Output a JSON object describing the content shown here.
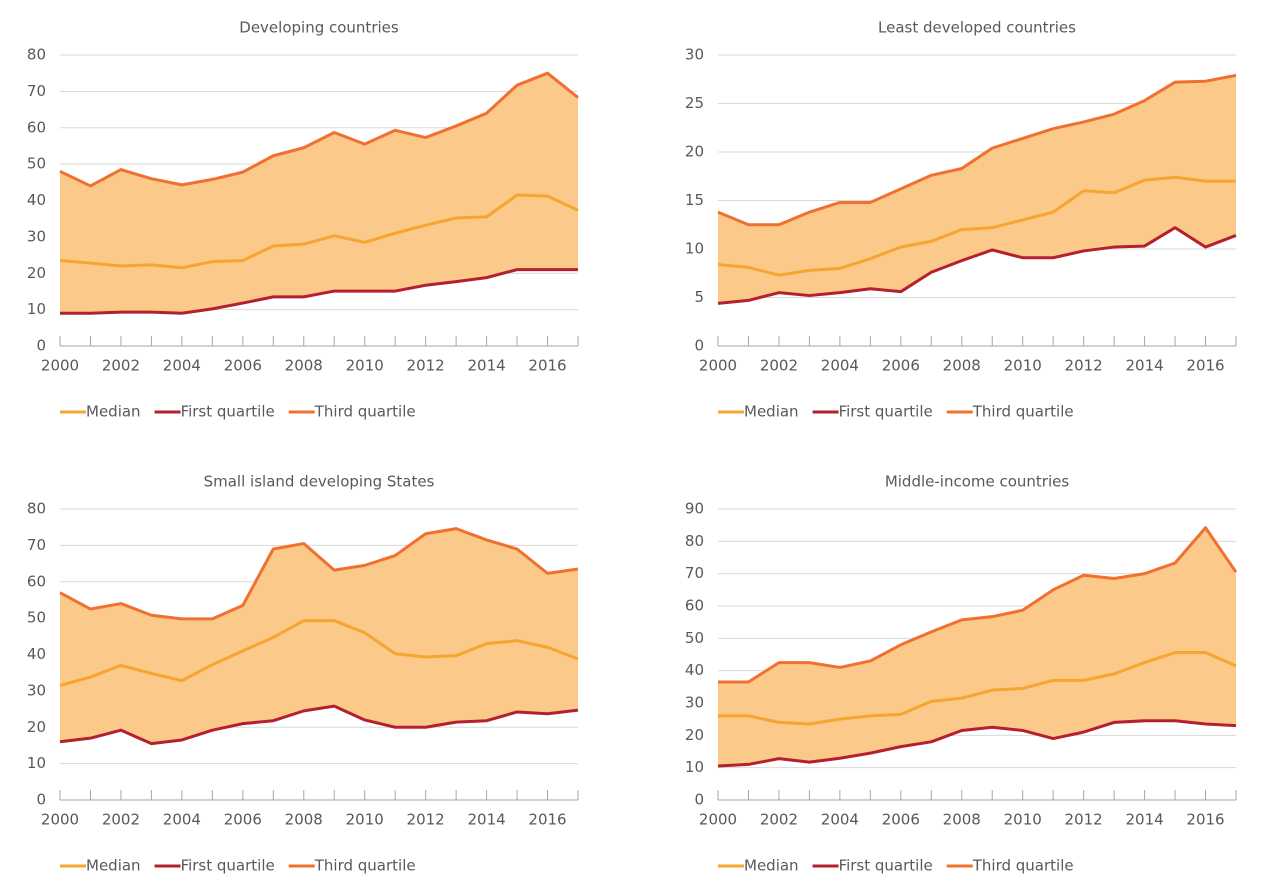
{
  "chart_data": [
    {
      "type": "line",
      "title": "Developing countries",
      "x": [
        2000,
        2001,
        2002,
        2003,
        2004,
        2005,
        2006,
        2007,
        2008,
        2009,
        2010,
        2011,
        2012,
        2013,
        2014,
        2015,
        2016,
        2017
      ],
      "series": [
        {
          "name": "Median",
          "color": "#f6a530",
          "values": [
            23.5,
            22.8,
            22,
            22.3,
            21.5,
            23.2,
            23.5,
            27.5,
            28,
            30.3,
            28.5,
            31,
            33.2,
            35.2,
            35.5,
            41.5,
            41.2,
            37.3
          ]
        },
        {
          "name": "First quartile",
          "color": "#b5202e",
          "values": [
            9,
            9,
            9.3,
            9.3,
            9,
            10.2,
            11.8,
            13.5,
            13.5,
            15.1,
            15.1,
            15.1,
            16.7,
            17.7,
            18.8,
            21,
            21,
            21
          ]
        },
        {
          "name": "Third quartile",
          "color": "#f07030",
          "values": [
            48,
            44,
            48.5,
            46,
            44.3,
            45.8,
            47.8,
            52.3,
            54.5,
            58.7,
            55.5,
            59.3,
            57.3,
            60.5,
            64,
            71.7,
            75,
            68.3
          ]
        }
      ],
      "xlim": [
        2000,
        2017
      ],
      "xticks": [
        2000,
        2002,
        2004,
        2006,
        2008,
        2010,
        2012,
        2014,
        2016
      ],
      "ylim": [
        0,
        80
      ],
      "yticks": [
        0,
        10,
        20,
        30,
        40,
        50,
        60,
        70,
        80
      ],
      "grid": true,
      "band_color": "#fbc98a"
    },
    {
      "type": "line",
      "title": "Least developed countries",
      "x": [
        2000,
        2001,
        2002,
        2003,
        2004,
        2005,
        2006,
        2007,
        2008,
        2009,
        2010,
        2011,
        2012,
        2013,
        2014,
        2015,
        2016,
        2017
      ],
      "series": [
        {
          "name": "Median",
          "color": "#f6a530",
          "values": [
            8.4,
            8.1,
            7.3,
            7.8,
            8,
            9,
            10.2,
            10.8,
            12,
            12.2,
            13,
            13.8,
            16,
            15.8,
            17.1,
            17.4,
            17,
            17
          ]
        },
        {
          "name": "First quartile",
          "color": "#b5202e",
          "values": [
            4.4,
            4.7,
            5.5,
            5.2,
            5.5,
            5.9,
            5.6,
            7.6,
            8.8,
            9.9,
            9.1,
            9.1,
            9.8,
            10.2,
            10.3,
            12.2,
            10.2,
            11.4
          ]
        },
        {
          "name": "Third quartile",
          "color": "#f07030",
          "values": [
            13.8,
            12.5,
            12.5,
            13.8,
            14.8,
            14.8,
            16.2,
            17.6,
            18.3,
            20.4,
            21.4,
            22.4,
            23.1,
            23.9,
            25.3,
            27.2,
            27.3,
            27.9
          ]
        }
      ],
      "xlim": [
        2000,
        2017
      ],
      "xticks": [
        2000,
        2002,
        2004,
        2006,
        2008,
        2010,
        2012,
        2014,
        2016
      ],
      "ylim": [
        0,
        30
      ],
      "yticks": [
        0,
        5,
        10,
        15,
        20,
        25,
        30
      ],
      "grid": true,
      "band_color": "#fbc98a"
    },
    {
      "type": "line",
      "title": "Small island developing States",
      "x": [
        2000,
        2001,
        2002,
        2003,
        2004,
        2005,
        2006,
        2007,
        2008,
        2009,
        2010,
        2011,
        2012,
        2013,
        2014,
        2015,
        2016,
        2017
      ],
      "series": [
        {
          "name": "Median",
          "color": "#f6a530",
          "values": [
            31.5,
            33.8,
            37,
            34.8,
            32.8,
            37.2,
            41,
            44.7,
            49.3,
            49.3,
            46,
            40.2,
            39.3,
            39.7,
            43,
            43.8,
            42,
            38.8
          ]
        },
        {
          "name": "First quartile",
          "color": "#b5202e",
          "values": [
            16,
            17,
            19.2,
            15.5,
            16.5,
            19.2,
            21,
            21.8,
            24.5,
            25.8,
            22,
            20,
            20,
            21.4,
            21.8,
            24.2,
            23.7,
            24.7
          ]
        },
        {
          "name": "Third quartile",
          "color": "#f07030",
          "values": [
            57,
            52.5,
            54,
            50.8,
            49.8,
            49.8,
            53.5,
            69,
            70.5,
            63.2,
            64.5,
            67.2,
            73.2,
            74.6,
            71.5,
            69,
            62.3,
            63.5
          ]
        }
      ],
      "xlim": [
        2000,
        2017
      ],
      "xticks": [
        2000,
        2002,
        2004,
        2006,
        2008,
        2010,
        2012,
        2014,
        2016
      ],
      "ylim": [
        0,
        80
      ],
      "yticks": [
        0,
        10,
        20,
        30,
        40,
        50,
        60,
        70,
        80
      ],
      "grid": true,
      "band_color": "#fbc98a"
    },
    {
      "type": "line",
      "title": "Middle-income countries",
      "x": [
        2000,
        2001,
        2002,
        2003,
        2004,
        2005,
        2006,
        2007,
        2008,
        2009,
        2010,
        2011,
        2012,
        2013,
        2014,
        2015,
        2016,
        2017
      ],
      "series": [
        {
          "name": "Median",
          "color": "#f6a530",
          "values": [
            26,
            26,
            24,
            23.5,
            25,
            26,
            26.5,
            30.5,
            31.5,
            34,
            34.5,
            37,
            37,
            39,
            42.5,
            45.6,
            45.6,
            41.5
          ]
        },
        {
          "name": "First quartile",
          "color": "#b5202e",
          "values": [
            10.5,
            11,
            12.8,
            11.7,
            12.9,
            14.5,
            16.5,
            18,
            21.5,
            22.5,
            21.5,
            19,
            21,
            24,
            24.5,
            24.5,
            23.5,
            23
          ]
        },
        {
          "name": "Third quartile",
          "color": "#f07030",
          "values": [
            36.5,
            36.5,
            42.5,
            42.5,
            41,
            43,
            48,
            52,
            55.7,
            56.7,
            58.7,
            65,
            69.5,
            68.5,
            70,
            73.3,
            84.2,
            70.5
          ]
        }
      ],
      "xlim": [
        2000,
        2017
      ],
      "xticks": [
        2000,
        2002,
        2004,
        2006,
        2008,
        2010,
        2012,
        2014,
        2016
      ],
      "ylim": [
        0,
        90
      ],
      "yticks": [
        0,
        10,
        20,
        30,
        40,
        50,
        60,
        70,
        80,
        90
      ],
      "grid": true,
      "band_color": "#fbc98a"
    }
  ]
}
